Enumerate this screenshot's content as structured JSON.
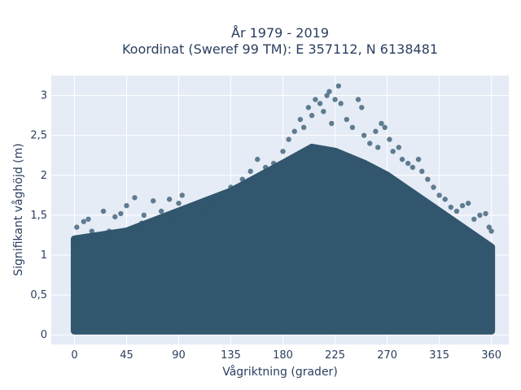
{
  "chart_data": {
    "type": "scatter",
    "title": "År 1979 - 2019",
    "subtitle": "Koordinat (Sweref 99 TM): E 357112, N 6138481",
    "xlabel": "Vågriktning (grader)",
    "ylabel": "Signifikant våghöjd (m)",
    "xlim": [
      -20,
      375
    ],
    "ylim": [
      -0.12,
      3.25
    ],
    "x_ticks": [
      0,
      45,
      90,
      135,
      180,
      225,
      270,
      315,
      360
    ],
    "x_tick_labels": [
      "0",
      "45",
      "90",
      "135",
      "180",
      "225",
      "270",
      "315",
      "360"
    ],
    "y_ticks": [
      0,
      0.5,
      1,
      1.5,
      2,
      2.5,
      3
    ],
    "y_tick_labels": [
      "0",
      "0,5",
      "1",
      "1,5",
      "2",
      "2,5",
      "3"
    ],
    "grid": true,
    "legend": "none",
    "marker_color": "#31566d",
    "plot_bg_color": "#e5ecf6",
    "envelope": {
      "x": [
        0,
        45,
        90,
        135,
        180,
        205,
        225,
        250,
        270,
        315,
        360
      ],
      "y_max": [
        1.2,
        1.3,
        1.55,
        1.8,
        2.15,
        2.35,
        2.3,
        2.15,
        2.0,
        1.55,
        1.1
      ]
    },
    "points": [
      {
        "x": 0,
        "y": 1.2
      },
      {
        "x": 2,
        "y": 1.35
      },
      {
        "x": 5,
        "y": 1.1
      },
      {
        "x": 8,
        "y": 1.42
      },
      {
        "x": 12,
        "y": 1.45
      },
      {
        "x": 15,
        "y": 1.3
      },
      {
        "x": 20,
        "y": 1.25
      },
      {
        "x": 25,
        "y": 1.55
      },
      {
        "x": 30,
        "y": 1.3
      },
      {
        "x": 35,
        "y": 1.48
      },
      {
        "x": 40,
        "y": 1.52
      },
      {
        "x": 45,
        "y": 1.62
      },
      {
        "x": 52,
        "y": 1.72
      },
      {
        "x": 58,
        "y": 1.4
      },
      {
        "x": 60,
        "y": 1.5
      },
      {
        "x": 68,
        "y": 1.68
      },
      {
        "x": 75,
        "y": 1.55
      },
      {
        "x": 82,
        "y": 1.7
      },
      {
        "x": 85,
        "y": 1.45
      },
      {
        "x": 90,
        "y": 1.65
      },
      {
        "x": 93,
        "y": 1.75
      },
      {
        "x": 100,
        "y": 1.6
      },
      {
        "x": 110,
        "y": 1.55
      },
      {
        "x": 118,
        "y": 1.65
      },
      {
        "x": 125,
        "y": 1.7
      },
      {
        "x": 135,
        "y": 1.85
      },
      {
        "x": 145,
        "y": 1.95
      },
      {
        "x": 152,
        "y": 2.05
      },
      {
        "x": 158,
        "y": 2.2
      },
      {
        "x": 165,
        "y": 2.1
      },
      {
        "x": 172,
        "y": 2.15
      },
      {
        "x": 180,
        "y": 2.3
      },
      {
        "x": 185,
        "y": 2.45
      },
      {
        "x": 190,
        "y": 2.55
      },
      {
        "x": 195,
        "y": 2.7
      },
      {
        "x": 198,
        "y": 2.6
      },
      {
        "x": 202,
        "y": 2.85
      },
      {
        "x": 205,
        "y": 2.75
      },
      {
        "x": 208,
        "y": 2.95
      },
      {
        "x": 212,
        "y": 2.9
      },
      {
        "x": 215,
        "y": 2.8
      },
      {
        "x": 218,
        "y": 3.0
      },
      {
        "x": 220,
        "y": 3.05
      },
      {
        "x": 222,
        "y": 2.65
      },
      {
        "x": 225,
        "y": 2.95
      },
      {
        "x": 228,
        "y": 3.12
      },
      {
        "x": 230,
        "y": 2.9
      },
      {
        "x": 235,
        "y": 2.7
      },
      {
        "x": 240,
        "y": 2.6
      },
      {
        "x": 245,
        "y": 2.95
      },
      {
        "x": 248,
        "y": 2.85
      },
      {
        "x": 250,
        "y": 2.5
      },
      {
        "x": 255,
        "y": 2.4
      },
      {
        "x": 260,
        "y": 2.55
      },
      {
        "x": 262,
        "y": 2.35
      },
      {
        "x": 265,
        "y": 2.65
      },
      {
        "x": 268,
        "y": 2.6
      },
      {
        "x": 272,
        "y": 2.45
      },
      {
        "x": 275,
        "y": 2.3
      },
      {
        "x": 280,
        "y": 2.35
      },
      {
        "x": 283,
        "y": 2.2
      },
      {
        "x": 288,
        "y": 2.15
      },
      {
        "x": 292,
        "y": 2.1
      },
      {
        "x": 297,
        "y": 2.2
      },
      {
        "x": 300,
        "y": 2.05
      },
      {
        "x": 305,
        "y": 1.95
      },
      {
        "x": 310,
        "y": 1.85
      },
      {
        "x": 315,
        "y": 1.75
      },
      {
        "x": 320,
        "y": 1.7
      },
      {
        "x": 325,
        "y": 1.6
      },
      {
        "x": 330,
        "y": 1.55
      },
      {
        "x": 335,
        "y": 1.62
      },
      {
        "x": 340,
        "y": 1.65
      },
      {
        "x": 345,
        "y": 1.45
      },
      {
        "x": 350,
        "y": 1.5
      },
      {
        "x": 355,
        "y": 1.52
      },
      {
        "x": 358,
        "y": 1.35
      },
      {
        "x": 360,
        "y": 1.3
      }
    ]
  }
}
